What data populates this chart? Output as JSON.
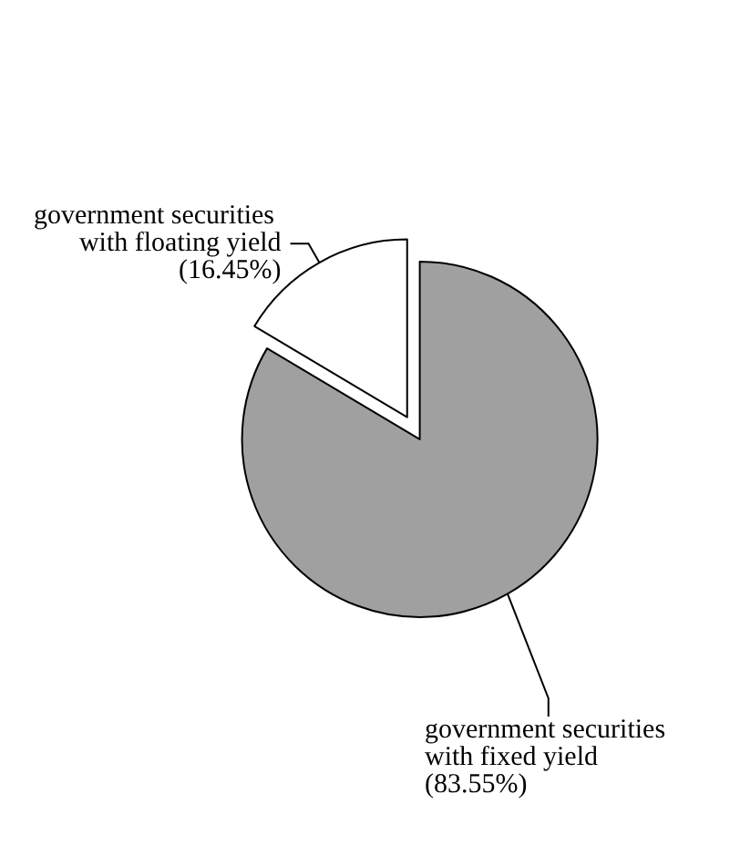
{
  "chart_data": {
    "type": "pie",
    "categories": [
      "government securities with floating yield",
      "government securities with fixed yield"
    ],
    "values": [
      16.45,
      83.55
    ],
    "colors": [
      "#ffffff",
      "#a0a0a0"
    ],
    "value_labels": [
      "(16.45%)",
      "(83.55%)"
    ],
    "legend": false
  }
}
